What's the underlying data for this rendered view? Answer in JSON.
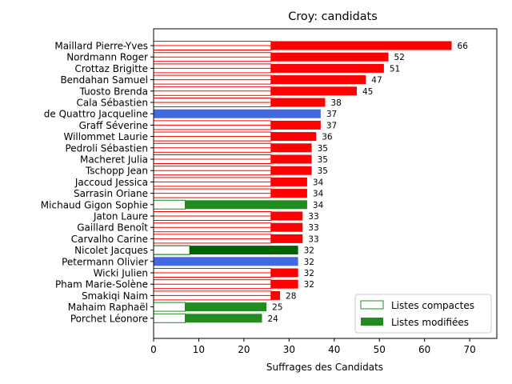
{
  "chart_data": {
    "type": "bar",
    "orientation": "horizontal",
    "title": "Croy: candidats",
    "xlabel": "Suffrages des Candidats",
    "ylabel": "",
    "xlim": [
      0,
      76
    ],
    "xticks": [
      0,
      10,
      20,
      30,
      40,
      50,
      60,
      70
    ],
    "grid": false,
    "legend_position": "bottom-right",
    "legend": [
      {
        "label": "Listes compactes",
        "style": "outline",
        "color": "#228B22"
      },
      {
        "label": "Listes modifiées",
        "style": "filled",
        "color": "#228B22"
      }
    ],
    "colors": {
      "red": "#FF0000",
      "blue": "#4169E1",
      "green": "#228B22",
      "darkgreen": "#006400"
    },
    "categories": [
      "Maillard Pierre-Yves",
      "Nordmann Roger",
      "Crottaz Brigitte",
      "Bendahan Samuel",
      "Tuosto Brenda",
      "Cala Sébastien",
      "de Quattro Jacqueline",
      "Graff Séverine",
      "Willommet Laurie",
      "Pedroli Sébastien",
      "Macheret Julia",
      "Tschopp Jean",
      "Jaccoud Jessica",
      "Sarrasin Oriane",
      "Michaud Gigon Sophie",
      "Jaton Laure",
      "Gaillard Benoît",
      "Carvalho Carine",
      "Nicolet Jacques",
      "Petermann Olivier",
      "Wicki Julien",
      "Pham Marie-Solène",
      "Smakiqi Naim",
      "Mahaim Raphaël",
      "Porchet Léonore"
    ],
    "series": [
      {
        "name": "Listes compactes",
        "values": [
          26,
          26,
          26,
          26,
          26,
          26,
          0,
          26,
          26,
          26,
          26,
          26,
          26,
          26,
          7,
          26,
          26,
          26,
          8,
          0,
          26,
          26,
          26,
          7,
          7
        ]
      },
      {
        "name": "Listes modifiées",
        "values": [
          40,
          26,
          25,
          21,
          19,
          12,
          37,
          11,
          10,
          9,
          9,
          9,
          8,
          8,
          27,
          7,
          7,
          7,
          24,
          32,
          6,
          6,
          2,
          18,
          17
        ]
      }
    ],
    "totals": [
      66,
      52,
      51,
      47,
      45,
      38,
      37,
      37,
      36,
      35,
      35,
      35,
      34,
      34,
      34,
      33,
      33,
      33,
      32,
      32,
      32,
      32,
      28,
      25,
      24
    ],
    "bar_colors": [
      "red",
      "red",
      "red",
      "red",
      "red",
      "red",
      "blue",
      "red",
      "red",
      "red",
      "red",
      "red",
      "red",
      "red",
      "green",
      "red",
      "red",
      "red",
      "darkgreen",
      "blue",
      "red",
      "red",
      "red",
      "green",
      "green"
    ]
  }
}
